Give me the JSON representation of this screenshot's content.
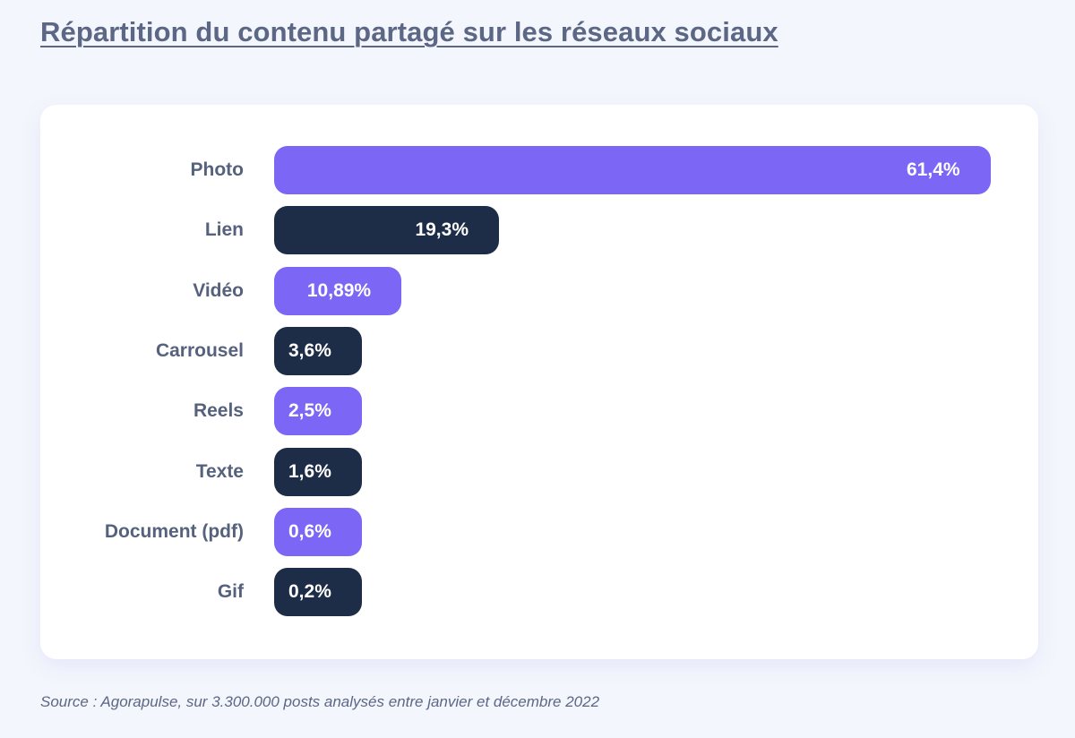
{
  "title": "Répartition du contenu partagé sur les réseaux sociaux",
  "source": "Source : Agorapulse, sur 3.300.000 posts analysés entre janvier et décembre 2022",
  "colors": {
    "purple": "#7b66f5",
    "navy": "#1e2d47",
    "label": "#56627d",
    "background": "#f4f6fd"
  },
  "chart_data": {
    "type": "bar",
    "orientation": "horizontal",
    "title": "Répartition du contenu partagé sur les réseaux sociaux",
    "unit": "%",
    "categories": [
      "Photo",
      "Lien",
      "Vidéo",
      "Carrousel",
      "Reels",
      "Texte",
      "Document (pdf)",
      "Gif"
    ],
    "values": [
      61.4,
      19.3,
      10.89,
      3.6,
      2.5,
      1.6,
      0.6,
      0.2
    ],
    "value_labels": [
      "61,4%",
      "19,3%",
      "10,89%",
      "3,6%",
      "2,5%",
      "1,6%",
      "0,6%",
      "0,2%"
    ],
    "bar_colors": [
      "purple",
      "navy",
      "purple",
      "navy",
      "purple",
      "navy",
      "purple",
      "navy"
    ],
    "xlim": [
      0,
      61.4
    ],
    "grid": false,
    "legend": "none"
  }
}
